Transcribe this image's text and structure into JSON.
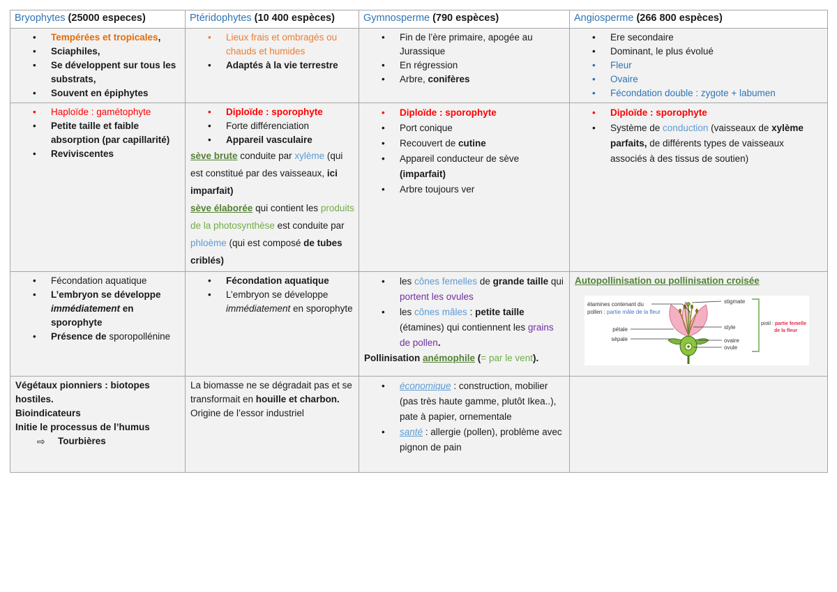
{
  "palette": {
    "text": "#1a1a1a",
    "blue": "#2e74b5",
    "lightblue": "#5b9bd5",
    "orange": "#e36c09",
    "orange_light": "#ed7d31",
    "red": "#ff0000",
    "green_dark": "#538135",
    "green": "#70ad47",
    "purple": "#7030a0",
    "cell_bg": "#f2f2f2",
    "border": "#a6a6a6"
  },
  "markers": {
    "bullet": "•",
    "arrow": "⇨"
  },
  "table": {
    "headers": [
      {
        "name": "Bryophytes",
        "count": "(25000 especes)"
      },
      {
        "name": "Ptéridophytes",
        "count": "(10 400 espèces)"
      },
      {
        "name": "Gymnosperme",
        "count": "(790 espèces)"
      },
      {
        "name": "Angiosperme",
        "count": "(266 800 espèces)"
      }
    ],
    "rows": [
      {
        "cells": [
          {
            "paras": [
              {
                "k": "bullet",
                "mc": "text",
                "runs": [
                  {
                    "t": "Tempérées et tropicales",
                    "c": "orange",
                    "b": 1
                  },
                  {
                    "t": ",",
                    "b": 1
                  }
                ]
              },
              {
                "k": "bullet",
                "runs": [
                  {
                    "t": "Sciaphiles,",
                    "b": 1
                  }
                ]
              },
              {
                "k": "bullet",
                "runs": [
                  {
                    "t": "Se développent sur tous les substrats,",
                    "b": 1
                  }
                ]
              },
              {
                "k": "bullet",
                "runs": [
                  {
                    "t": "Souvent en épiphytes",
                    "b": 1
                  }
                ]
              }
            ]
          },
          {
            "paras": [
              {
                "k": "bullet",
                "runs": [
                  {
                    "t": "Lieux frais et ombragés ou chauds et humides",
                    "c": "orange_light"
                  }
                ]
              },
              {
                "k": "bullet",
                "runs": [
                  {
                    "t": "Adaptés à la vie terrestre",
                    "b": 1
                  }
                ]
              }
            ]
          },
          {
            "paras": [
              {
                "k": "bullet",
                "runs": [
                  {
                    "t": "Fin de l’ère primaire, apogée au Jurassique"
                  }
                ]
              },
              {
                "k": "bullet",
                "runs": [
                  {
                    "t": "En régression"
                  }
                ]
              },
              {
                "k": "bullet",
                "runs": [
                  {
                    "t": "Arbre, "
                  },
                  {
                    "t": "conifères",
                    "b": 1
                  }
                ]
              }
            ]
          },
          {
            "paras": [
              {
                "k": "bullet",
                "runs": [
                  {
                    "t": "Ere secondaire"
                  }
                ]
              },
              {
                "k": "bullet",
                "runs": [
                  {
                    "t": "Dominant, le plus évolué"
                  }
                ]
              },
              {
                "k": "bullet",
                "runs": [
                  {
                    "t": "Fleur",
                    "c": "blue"
                  }
                ]
              },
              {
                "k": "bullet",
                "runs": [
                  {
                    "t": "Ovaire",
                    "c": "blue"
                  }
                ]
              },
              {
                "k": "bullet",
                "runs": [
                  {
                    "t": "Fécondation double : zygote + labumen",
                    "c": "blue"
                  }
                ]
              }
            ]
          }
        ]
      },
      {
        "cells": [
          {
            "paras": [
              {
                "k": "bullet",
                "runs": [
                  {
                    "t": "Haploïde : gamétophyte",
                    "c": "red"
                  }
                ]
              },
              {
                "k": "bullet",
                "runs": [
                  {
                    "t": "Petite taille et faible absorption (par capillarité)",
                    "b": 1
                  }
                ]
              },
              {
                "k": "bullet",
                "runs": [
                  {
                    "t": "Reviviscentes",
                    "b": 1
                  }
                ]
              }
            ]
          },
          {
            "paras": [
              {
                "k": "bullet",
                "runs": [
                  {
                    "t": "Diploïde : sporophyte",
                    "c": "red",
                    "b": 1
                  }
                ]
              },
              {
                "k": "bullet",
                "runs": [
                  {
                    "t": "Forte différenciation"
                  }
                ]
              },
              {
                "k": "bullet",
                "runs": [
                  {
                    "t": "Appareil vasculaire",
                    "b": 1
                  }
                ]
              },
              {
                "k": "plain",
                "lh": 25,
                "runs": [
                  {
                    "t": "sève brute",
                    "c": "green_dark",
                    "b": 1,
                    "u": 1
                  },
                  {
                    "t": " conduite par "
                  },
                  {
                    "t": "xylème",
                    "c": "lightblue"
                  },
                  {
                    "t": " (qui est constitué par des vaisseaux, "
                  },
                  {
                    "t": "ici imparfait)",
                    "b": 1
                  }
                ]
              },
              {
                "k": "plain",
                "lh": 25,
                "runs": [
                  {
                    "t": "sève élaborée",
                    "c": "green_dark",
                    "b": 1,
                    "u": 1
                  },
                  {
                    "t": " qui contient les "
                  },
                  {
                    "t": "produits de la photosynthèse",
                    "c": "green"
                  },
                  {
                    "t": " est conduite par "
                  },
                  {
                    "t": "phloème",
                    "c": "lightblue"
                  },
                  {
                    "t": " (qui est composé "
                  },
                  {
                    "t": "de tubes criblés)",
                    "b": 1
                  }
                ]
              }
            ]
          },
          {
            "paras": [
              {
                "k": "bullet",
                "lh": 22,
                "runs": [
                  {
                    "t": "Diploïde : sporophyte",
                    "c": "red",
                    "b": 1
                  }
                ]
              },
              {
                "k": "bullet",
                "lh": 22,
                "runs": [
                  {
                    "t": "Port conique"
                  }
                ]
              },
              {
                "k": "bullet",
                "lh": 22,
                "runs": [
                  {
                    "t": "Recouvert de "
                  },
                  {
                    "t": "cutine",
                    "b": 1
                  }
                ]
              },
              {
                "k": "bullet",
                "lh": 22,
                "runs": [
                  {
                    "t": "Appareil conducteur de sève "
                  },
                  {
                    "t": "(imparfait)",
                    "b": 1
                  }
                ]
              },
              {
                "k": "bullet",
                "lh": 22,
                "runs": [
                  {
                    "t": "Arbre toujours ver"
                  }
                ]
              }
            ]
          },
          {
            "paras": [
              {
                "k": "bullet",
                "lh": 22,
                "runs": [
                  {
                    "t": "Diploïde : sporophyte",
                    "c": "red",
                    "b": 1
                  }
                ]
              },
              {
                "k": "bullet",
                "lh": 22,
                "runs": [
                  {
                    "t": "Système de "
                  },
                  {
                    "t": "conduction",
                    "c": "lightblue"
                  },
                  {
                    "t": " (vaisseaux de "
                  },
                  {
                    "t": "xylème parfaits,",
                    "b": 1
                  },
                  {
                    "t": " de différents types de vaisseaux associés à des tissus de soutien)"
                  }
                ]
              }
            ]
          }
        ]
      },
      {
        "cells": [
          {
            "paras": [
              {
                "k": "bullet",
                "runs": [
                  {
                    "t": "Fécondation aquatique"
                  }
                ]
              },
              {
                "k": "bullet",
                "runs": [
                  {
                    "t": "L’embryon se développe ",
                    "b": 1
                  },
                  {
                    "t": "immédiatement",
                    "b": 1,
                    "i": 1
                  },
                  {
                    "t": " en sporophyte",
                    "b": 1
                  }
                ]
              },
              {
                "k": "bullet",
                "runs": [
                  {
                    "t": "Présence de ",
                    "b": 1
                  },
                  {
                    "t": "sporopollénine"
                  }
                ]
              }
            ]
          },
          {
            "paras": [
              {
                "k": "bullet",
                "runs": [
                  {
                    "t": "Fécondation aquatique",
                    "b": 1
                  }
                ]
              },
              {
                "k": "bullet",
                "runs": [
                  {
                    "t": "L’embryon se développe "
                  },
                  {
                    "t": "immédiatement",
                    "i": 1
                  },
                  {
                    "t": " en sporophyte"
                  }
                ]
              }
            ]
          },
          {
            "paras": [
              {
                "k": "bullet",
                "lh": 22,
                "runs": [
                  {
                    "t": "les "
                  },
                  {
                    "t": "cônes femelles",
                    "c": "lightblue"
                  },
                  {
                    "t": " de "
                  },
                  {
                    "t": "grande taille",
                    "b": 1
                  },
                  {
                    "t": " qui "
                  },
                  {
                    "t": "portent les ovules",
                    "c": "purple"
                  }
                ]
              },
              {
                "k": "bullet",
                "lh": 22,
                "runs": [
                  {
                    "t": "les "
                  },
                  {
                    "t": "cônes mâles",
                    "c": "lightblue"
                  },
                  {
                    "t": " :  "
                  },
                  {
                    "t": "petite taille",
                    "b": 1
                  },
                  {
                    "t": " (étamines) qui contiennent les "
                  },
                  {
                    "t": "grains de pollen",
                    "c": "purple"
                  },
                  {
                    "t": ".",
                    "b": 1
                  }
                ]
              },
              {
                "k": "plain",
                "lh": 22,
                "runs": [
                  {
                    "t": "Pollinisation ",
                    "b": 1
                  },
                  {
                    "t": "anémophile",
                    "c": "green_dark",
                    "b": 1,
                    "u": 1
                  },
                  {
                    "t": " (",
                    "b": 1
                  },
                  {
                    "t": "= par le vent",
                    "c": "green"
                  },
                  {
                    "t": ").",
                    "b": 1
                  }
                ]
              }
            ]
          },
          {
            "paras": [
              {
                "k": "plain",
                "runs": [
                  {
                    "t": "Autopollinisation ou pollinisation croisée",
                    "c": "green_dark",
                    "b": 1,
                    "u": 1
                  }
                ]
              }
            ]
          }
        ]
      },
      {
        "cells": [
          {
            "paras": [
              {
                "k": "plain",
                "runs": [
                  {
                    "t": "Végétaux pionniers : biotopes hostiles.",
                    "b": 1
                  }
                ]
              },
              {
                "k": "plain",
                "runs": [
                  {
                    "t": "Bioindicateurs",
                    "b": 1
                  }
                ]
              },
              {
                "k": "plain",
                "runs": [
                  {
                    "t": "Initie le processus de l’humus",
                    "b": 1
                  }
                ]
              },
              {
                "k": "arrow",
                "runs": [
                  {
                    "t": "Tourbières",
                    "b": 1
                  }
                ]
              }
            ]
          },
          {
            "paras": [
              {
                "k": "plain",
                "runs": [
                  {
                    "t": "La biomasse ne se dégradait pas et se transformait en "
                  },
                  {
                    "t": "houille et charbon.",
                    "b": 1
                  }
                ]
              },
              {
                "k": "plain",
                "runs": [
                  {
                    "t": "Origine de l’essor industriel"
                  }
                ]
              }
            ]
          },
          {
            "paras": [
              {
                "k": "bullet",
                "mc": "text",
                "lh": 22,
                "runs": [
                  {
                    "t": "économique",
                    "c": "lightblue",
                    "i": 1,
                    "u": 1
                  },
                  {
                    "t": " : construction, mobilier (pas très haute gamme, plutôt Ikea..), pate à papier, ornementale"
                  }
                ]
              },
              {
                "k": "bullet",
                "mc": "text",
                "lh": 22,
                "runs": [
                  {
                    "t": "santé",
                    "c": "lightblue",
                    "i": 1,
                    "u": 1
                  },
                  {
                    "t": " : allergie (pollen), problème avec  pignon de pain"
                  }
                ]
              }
            ]
          },
          {
            "paras": []
          }
        ]
      }
    ]
  },
  "diagram": {
    "labels": {
      "etamines_line1": "étamines contenant du",
      "etamines_line2": "pollen : ",
      "etamines_blue": "partie mâle de la fleur",
      "petale": "pétale",
      "sepale": "sépale",
      "stigmate": "stigmate",
      "style": "style",
      "ovaire": "ovaire",
      "ovule": "ovule",
      "pistil_label": "pistil : ",
      "pistil_red1": "partie femelle",
      "pistil_red2": "de la fleur"
    }
  }
}
